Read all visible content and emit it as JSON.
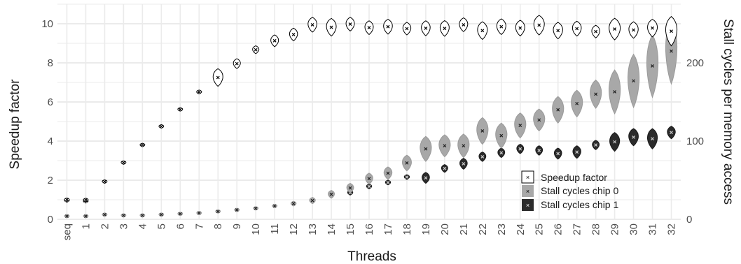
{
  "chart_data": {
    "type": "violin",
    "xlabel": "Threads",
    "ylabel_left": "Speedup factor",
    "ylabel_right": "Stall cycles per memory access",
    "categories": [
      "seq",
      "1",
      "2",
      "3",
      "4",
      "5",
      "6",
      "7",
      "8",
      "9",
      "10",
      "11",
      "12",
      "13",
      "14",
      "15",
      "16",
      "17",
      "18",
      "19",
      "20",
      "21",
      "22",
      "23",
      "24",
      "25",
      "26",
      "27",
      "28",
      "29",
      "30",
      "31",
      "32"
    ],
    "ylim_left": [
      0,
      11
    ],
    "ylim_right": [
      0,
      275
    ],
    "yticks_left": [
      "0",
      "2",
      "4",
      "6",
      "8",
      "10"
    ],
    "yticks_right": [
      "0",
      "100",
      "200"
    ],
    "grid": true,
    "legend_position": "bottom-right",
    "colors": {
      "speedup_fill": "#ffffff",
      "speedup_stroke": "#000000",
      "chip0_fill": "#a8a8a8",
      "chip1_fill": "#2b2b2b",
      "grid": "#ebebeb",
      "marker": "#000000"
    },
    "series": [
      {
        "name": "Speedup factor",
        "axis": "left",
        "median": [
          1.0,
          0.99,
          1.93,
          2.9,
          3.8,
          4.75,
          5.62,
          6.51,
          7.25,
          7.96,
          8.67,
          9.13,
          9.45,
          9.95,
          9.82,
          9.98,
          9.8,
          9.85,
          9.75,
          9.77,
          9.76,
          9.95,
          9.65,
          9.85,
          9.78,
          9.93,
          9.65,
          9.75,
          9.6,
          9.73,
          9.68,
          9.78,
          9.62
        ],
        "spread": [
          0.06,
          0.06,
          0.06,
          0.05,
          0.05,
          0.06,
          0.08,
          0.1,
          0.45,
          0.25,
          0.2,
          0.3,
          0.32,
          0.38,
          0.45,
          0.35,
          0.35,
          0.38,
          0.32,
          0.38,
          0.4,
          0.35,
          0.45,
          0.4,
          0.4,
          0.5,
          0.42,
          0.38,
          0.32,
          0.55,
          0.42,
          0.45,
          0.75
        ]
      },
      {
        "name": "Stall cycles chip 0",
        "axis": "right",
        "median": [
          4,
          4,
          6,
          5,
          5,
          6,
          7,
          8,
          10,
          12,
          14,
          17,
          20,
          24,
          32,
          40,
          52,
          59,
          72,
          90,
          94,
          94,
          113,
          107,
          120,
          127,
          140,
          148,
          160,
          163,
          177,
          196,
          215
        ],
        "spread": [
          1,
          1,
          1,
          1,
          1,
          1,
          1,
          1,
          1,
          1.5,
          2,
          2,
          3,
          4,
          5,
          6,
          7,
          8,
          10,
          16,
          14,
          15,
          17,
          16,
          16,
          14,
          17,
          17,
          18,
          28,
          34,
          40,
          42
        ]
      },
      {
        "name": "Stall cycles chip 1",
        "axis": "right",
        "median": [
          24,
          23,
          null,
          null,
          null,
          null,
          null,
          null,
          null,
          null,
          null,
          null,
          null,
          24,
          32,
          34,
          42,
          47,
          54,
          53,
          65,
          71,
          80,
          85,
          90,
          88,
          84,
          86,
          95,
          99,
          105,
          103,
          111
        ],
        "spread": [
          2,
          2,
          null,
          null,
          null,
          null,
          null,
          null,
          null,
          null,
          null,
          null,
          null,
          3,
          3,
          3,
          3,
          3,
          3,
          7,
          5,
          7,
          6,
          6,
          6,
          6,
          7,
          8,
          6,
          12,
          11,
          13,
          8
        ]
      }
    ]
  }
}
